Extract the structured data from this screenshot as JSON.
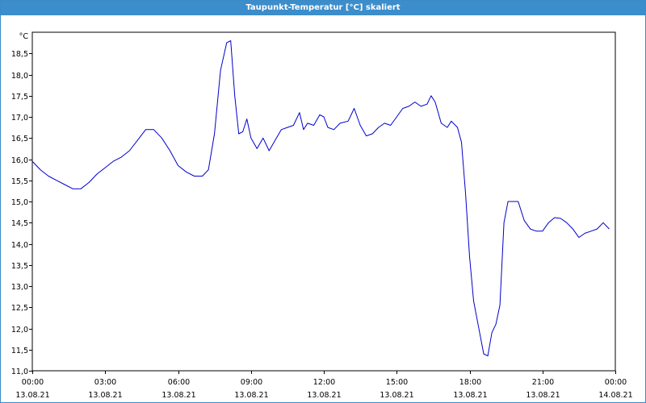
{
  "window": {
    "title": "Taupunkt-Temperatur [°C] skaliert"
  },
  "colors": {
    "title_bg": "#3c8dcb",
    "line": "#0000cc",
    "grid": "#000000"
  },
  "chart_data": {
    "type": "line",
    "title": "Taupunkt-Temperatur [°C] skaliert",
    "ylabel": "°C",
    "xlabel": "",
    "grid": true,
    "ylim": [
      11.0,
      19.0
    ],
    "xlim_hours": [
      0,
      24
    ],
    "y_ticks": [
      "11,0",
      "11,5",
      "12,0",
      "12,5",
      "13,0",
      "13,5",
      "14,0",
      "14,5",
      "15,0",
      "15,5",
      "16,0",
      "16,5",
      "17,0",
      "17,5",
      "18,0",
      "18,5"
    ],
    "x_ticks": [
      {
        "time": "00:00",
        "date": "13.08.21"
      },
      {
        "time": "03:00",
        "date": "13.08.21"
      },
      {
        "time": "06:00",
        "date": "13.08.21"
      },
      {
        "time": "09:00",
        "date": "13.08.21"
      },
      {
        "time": "12:00",
        "date": "13.08.21"
      },
      {
        "time": "15:00",
        "date": "13.08.21"
      },
      {
        "time": "18:00",
        "date": "13.08.21"
      },
      {
        "time": "21:00",
        "date": "13.08.21"
      },
      {
        "time": "00:00",
        "date": "14.08.21"
      }
    ],
    "series": [
      {
        "points": [
          [
            "13.08.21 00:00",
            15.95
          ],
          [
            "13.08.21 00:20",
            15.75
          ],
          [
            "13.08.21 00:40",
            15.6
          ],
          [
            "13.08.21 01:00",
            15.5
          ],
          [
            "13.08.21 01:20",
            15.4
          ],
          [
            "13.08.21 01:40",
            15.3
          ],
          [
            "13.08.21 02:00",
            15.3
          ],
          [
            "13.08.21 02:20",
            15.45
          ],
          [
            "13.08.21 02:40",
            15.65
          ],
          [
            "13.08.21 03:00",
            15.8
          ],
          [
            "13.08.21 03:20",
            15.95
          ],
          [
            "13.08.21 03:40",
            16.05
          ],
          [
            "13.08.21 04:00",
            16.2
          ],
          [
            "13.08.21 04:20",
            16.45
          ],
          [
            "13.08.21 04:40",
            16.7
          ],
          [
            "13.08.21 05:00",
            16.7
          ],
          [
            "13.08.21 05:20",
            16.5
          ],
          [
            "13.08.21 05:40",
            16.2
          ],
          [
            "13.08.21 06:00",
            15.85
          ],
          [
            "13.08.21 06:20",
            15.7
          ],
          [
            "13.08.21 06:40",
            15.6
          ],
          [
            "13.08.21 07:00",
            15.6
          ],
          [
            "13.08.21 07:15",
            15.75
          ],
          [
            "13.08.21 07:30",
            16.6
          ],
          [
            "13.08.21 07:45",
            18.1
          ],
          [
            "13.08.21 08:00",
            18.75
          ],
          [
            "13.08.21 08:10",
            18.8
          ],
          [
            "13.08.21 08:20",
            17.5
          ],
          [
            "13.08.21 08:30",
            16.6
          ],
          [
            "13.08.21 08:40",
            16.65
          ],
          [
            "13.08.21 08:50",
            16.95
          ],
          [
            "13.08.21 09:00",
            16.5
          ],
          [
            "13.08.21 09:15",
            16.25
          ],
          [
            "13.08.21 09:30",
            16.5
          ],
          [
            "13.08.21 09:45",
            16.2
          ],
          [
            "13.08.21 10:00",
            16.45
          ],
          [
            "13.08.21 10:15",
            16.7
          ],
          [
            "13.08.21 10:30",
            16.75
          ],
          [
            "13.08.21 10:45",
            16.8
          ],
          [
            "13.08.21 11:00",
            17.1
          ],
          [
            "13.08.21 11:10",
            16.7
          ],
          [
            "13.08.21 11:20",
            16.85
          ],
          [
            "13.08.21 11:35",
            16.8
          ],
          [
            "13.08.21 11:50",
            17.05
          ],
          [
            "13.08.21 12:00",
            17.0
          ],
          [
            "13.08.21 12:10",
            16.75
          ],
          [
            "13.08.21 12:25",
            16.7
          ],
          [
            "13.08.21 12:40",
            16.85
          ],
          [
            "13.08.21 13:00",
            16.9
          ],
          [
            "13.08.21 13:15",
            17.2
          ],
          [
            "13.08.21 13:30",
            16.8
          ],
          [
            "13.08.21 13:45",
            16.55
          ],
          [
            "13.08.21 14:00",
            16.6
          ],
          [
            "13.08.21 14:15",
            16.75
          ],
          [
            "13.08.21 14:30",
            16.85
          ],
          [
            "13.08.21 14:45",
            16.8
          ],
          [
            "13.08.21 15:00",
            17.0
          ],
          [
            "13.08.21 15:15",
            17.2
          ],
          [
            "13.08.21 15:30",
            17.25
          ],
          [
            "13.08.21 15:45",
            17.35
          ],
          [
            "13.08.21 16:00",
            17.25
          ],
          [
            "13.08.21 16:15",
            17.3
          ],
          [
            "13.08.21 16:25",
            17.5
          ],
          [
            "13.08.21 16:35",
            17.35
          ],
          [
            "13.08.21 16:50",
            16.85
          ],
          [
            "13.08.21 17:05",
            16.75
          ],
          [
            "13.08.21 17:15",
            16.9
          ],
          [
            "13.08.21 17:30",
            16.75
          ],
          [
            "13.08.21 17:40",
            16.4
          ],
          [
            "13.08.21 17:50",
            15.2
          ],
          [
            "13.08.21 18:00",
            13.7
          ],
          [
            "13.08.21 18:10",
            12.65
          ],
          [
            "13.08.21 18:25",
            11.9
          ],
          [
            "13.08.21 18:35",
            11.4
          ],
          [
            "13.08.21 18:45",
            11.35
          ],
          [
            "13.08.21 18:55",
            11.9
          ],
          [
            "13.08.21 19:05",
            12.1
          ],
          [
            "13.08.21 19:15",
            12.55
          ],
          [
            "13.08.21 19:25",
            14.5
          ],
          [
            "13.08.21 19:35",
            15.0
          ],
          [
            "13.08.21 19:50",
            15.0
          ],
          [
            "13.08.21 20:00",
            15.0
          ],
          [
            "13.08.21 20:15",
            14.55
          ],
          [
            "13.08.21 20:30",
            14.35
          ],
          [
            "13.08.21 20:45",
            14.3
          ],
          [
            "13.08.21 21:00",
            14.3
          ],
          [
            "13.08.21 21:15",
            14.5
          ],
          [
            "13.08.21 21:30",
            14.62
          ],
          [
            "13.08.21 21:45",
            14.6
          ],
          [
            "13.08.21 22:00",
            14.5
          ],
          [
            "13.08.21 22:15",
            14.35
          ],
          [
            "13.08.21 22:30",
            14.15
          ],
          [
            "13.08.21 22:45",
            14.25
          ],
          [
            "13.08.21 23:00",
            14.3
          ],
          [
            "13.08.21 23:15",
            14.35
          ],
          [
            "13.08.21 23:30",
            14.5
          ],
          [
            "13.08.21 23:45",
            14.35
          ]
        ]
      }
    ]
  }
}
